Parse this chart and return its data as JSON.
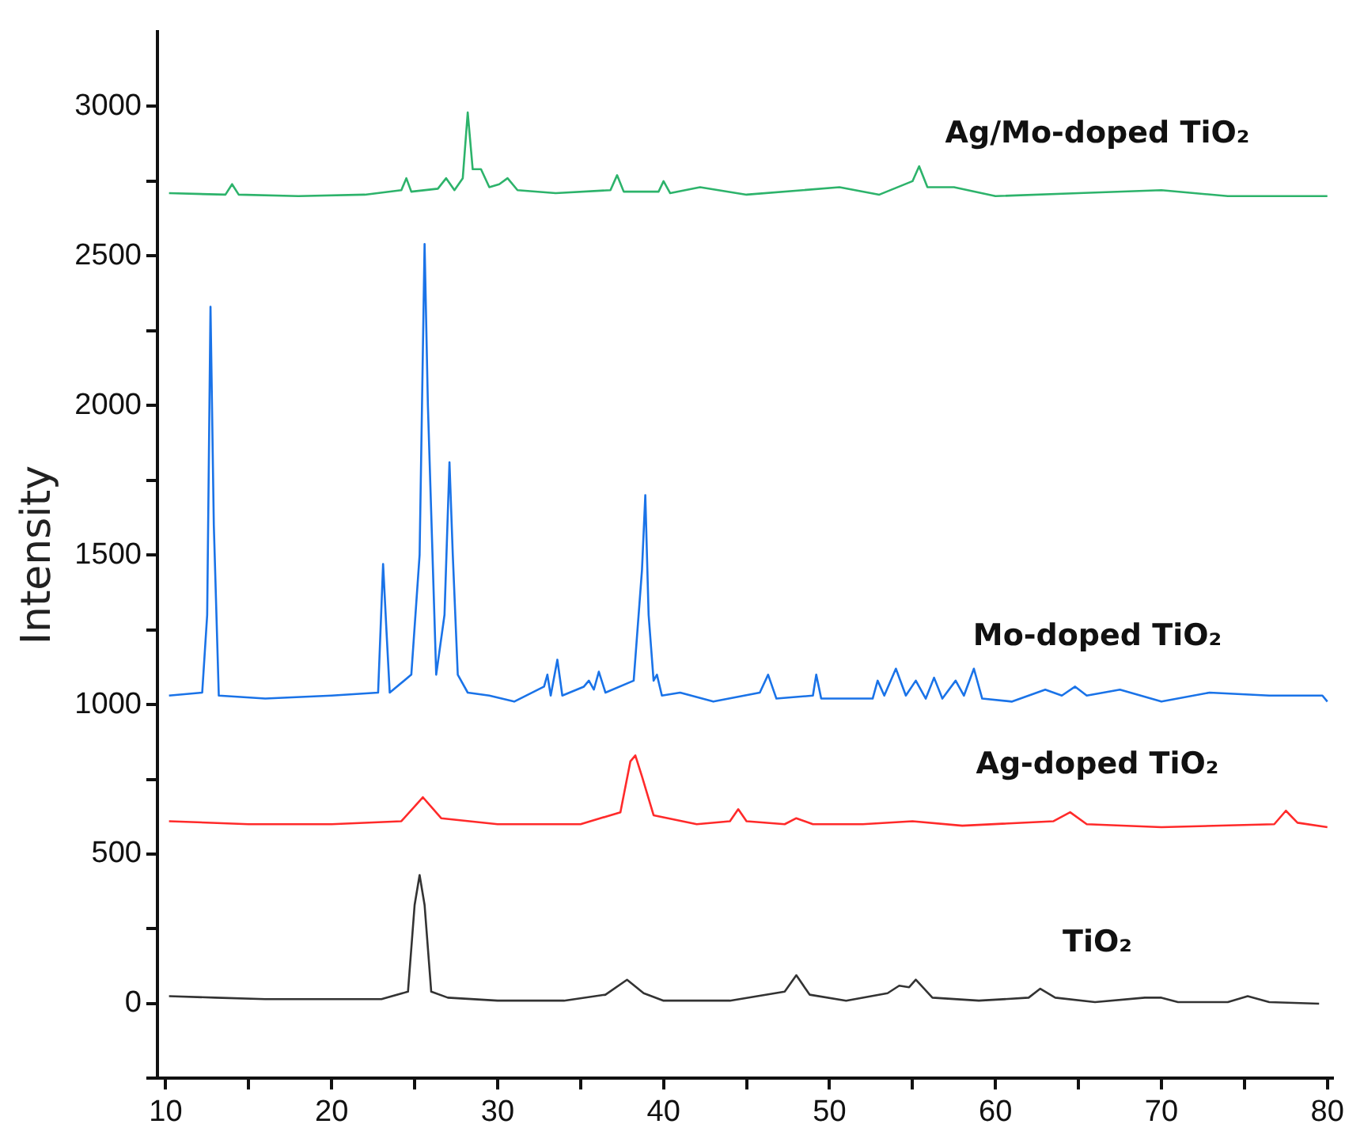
{
  "chart_data": {
    "type": "line",
    "ylabel": "Intensity",
    "xlim": [
      9.5,
      80.3
    ],
    "ylim": [
      -250,
      3250
    ],
    "xticks": [
      10,
      {
        "value": 15,
        "label": null
      },
      20,
      {
        "value": 25,
        "label": null
      },
      30,
      {
        "value": 35,
        "label": null
      },
      40,
      {
        "value": 45,
        "label": null
      },
      50,
      {
        "value": 55,
        "label": null
      },
      60,
      {
        "value": 65,
        "label": null
      },
      70,
      {
        "value": 75,
        "label": null
      },
      80
    ],
    "yticks": [
      {
        "value": -250,
        "label": null
      },
      0,
      {
        "value": 250,
        "label": null
      },
      500,
      {
        "value": 750,
        "label": null
      },
      1000,
      {
        "value": 1250,
        "label": null
      },
      1500,
      {
        "value": 1750,
        "label": null
      },
      2000,
      {
        "value": 2250,
        "label": null
      },
      2500,
      {
        "value": 2750,
        "label": null
      },
      3000
    ],
    "grid": false,
    "legend": false,
    "marker": "none",
    "line_style": "solid",
    "series": [
      {
        "name": "TiO₂",
        "color": "#333333",
        "x": [
          10.2,
          13,
          16,
          20,
          23,
          24.6,
          25.0,
          25.3,
          25.6,
          26.0,
          27,
          30,
          34,
          36.5,
          37.8,
          38.8,
          40,
          44,
          47.3,
          48.0,
          48.8,
          51,
          53.5,
          54.2,
          54.8,
          55.2,
          56.2,
          59,
          62,
          62.7,
          63.6,
          66,
          69,
          70,
          71,
          74,
          75.2,
          76.5,
          79.5
        ],
        "values": [
          25,
          20,
          15,
          15,
          15,
          40,
          330,
          430,
          330,
          40,
          20,
          10,
          10,
          30,
          80,
          35,
          10,
          10,
          40,
          95,
          30,
          10,
          35,
          60,
          55,
          80,
          20,
          10,
          20,
          50,
          20,
          5,
          20,
          20,
          5,
          5,
          25,
          5,
          0
        ]
      },
      {
        "name": "Ag-doped TiO₂",
        "color": "#ff2a2a",
        "x": [
          10.2,
          15,
          20,
          24.2,
          25.5,
          26.6,
          30,
          35,
          37.4,
          38.0,
          38.3,
          38.7,
          39.4,
          42,
          44.0,
          44.5,
          45.0,
          47.3,
          48,
          49,
          52,
          55,
          58,
          63.5,
          64.5,
          65.5,
          70,
          76.8,
          77.5,
          78.2,
          80
        ],
        "values": [
          610,
          600,
          600,
          610,
          690,
          620,
          600,
          600,
          640,
          810,
          830,
          760,
          630,
          600,
          610,
          650,
          610,
          600,
          620,
          600,
          600,
          610,
          595,
          610,
          640,
          600,
          590,
          600,
          645,
          605,
          590
        ]
      },
      {
        "name": "Mo-doped TiO₂",
        "color": "#1a73e8",
        "x": [
          10.2,
          12.2,
          12.5,
          12.7,
          12.9,
          13.2,
          16,
          20,
          22.8,
          23.1,
          23.3,
          23.5,
          24.8,
          25.3,
          25.6,
          25.8,
          26.3,
          26.8,
          27.1,
          27.3,
          27.6,
          28.2,
          29.5,
          31,
          32.8,
          33.0,
          33.2,
          33.6,
          33.9,
          35.2,
          35.5,
          35.8,
          36.1,
          36.5,
          38.2,
          38.7,
          38.9,
          39.1,
          39.4,
          39.6,
          39.9,
          41,
          43,
          45.8,
          46.3,
          46.8,
          49.0,
          49.2,
          49.5,
          52.6,
          52.9,
          53.3,
          54.0,
          54.6,
          55.2,
          55.8,
          56.3,
          56.8,
          57.6,
          58.1,
          58.7,
          59.2,
          61,
          63,
          64,
          64.8,
          65.5,
          67.5,
          70,
          72.9,
          76.5,
          79.7,
          80
        ],
        "values": [
          1030,
          1040,
          1300,
          2330,
          1600,
          1030,
          1020,
          1030,
          1040,
          1470,
          1250,
          1040,
          1100,
          1500,
          2540,
          2000,
          1100,
          1300,
          1810,
          1500,
          1100,
          1040,
          1030,
          1010,
          1060,
          1100,
          1030,
          1150,
          1030,
          1060,
          1080,
          1050,
          1110,
          1040,
          1080,
          1450,
          1700,
          1300,
          1080,
          1100,
          1030,
          1040,
          1010,
          1040,
          1100,
          1020,
          1030,
          1100,
          1020,
          1020,
          1080,
          1030,
          1120,
          1030,
          1080,
          1020,
          1090,
          1020,
          1080,
          1030,
          1120,
          1020,
          1010,
          1050,
          1030,
          1060,
          1030,
          1050,
          1010,
          1040,
          1030,
          1030,
          1010
        ]
      },
      {
        "name": "Ag/Mo-doped TiO₂",
        "color": "#2db36b",
        "x": [
          10.2,
          13.6,
          14,
          14.4,
          18,
          22,
          24.2,
          24.5,
          24.8,
          26.4,
          26.9,
          27.4,
          27.9,
          28.2,
          28.5,
          29,
          29.5,
          30.1,
          30.6,
          31.2,
          33.5,
          36.8,
          37.2,
          37.6,
          39.7,
          40,
          40.4,
          42.2,
          45,
          50.6,
          53,
          55.0,
          55.4,
          55.9,
          57.5,
          60,
          65,
          70,
          74,
          80
        ],
        "values": [
          2710,
          2705,
          2740,
          2705,
          2700,
          2705,
          2720,
          2760,
          2715,
          2725,
          2760,
          2720,
          2760,
          2980,
          2790,
          2790,
          2730,
          2740,
          2760,
          2720,
          2710,
          2720,
          2770,
          2715,
          2715,
          2750,
          2710,
          2730,
          2705,
          2730,
          2705,
          2750,
          2800,
          2730,
          2730,
          2700,
          2710,
          2720,
          2700,
          2700
        ]
      }
    ]
  }
}
